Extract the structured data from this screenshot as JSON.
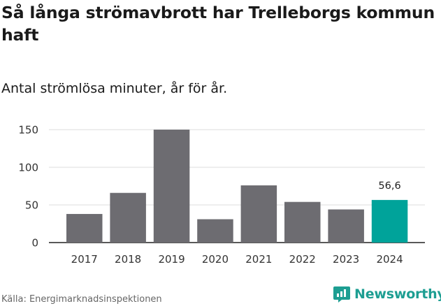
{
  "title": "Så långa strömavbrott har Trelleborgs kommun haft",
  "subtitle": "Antal strömlösa minuter, år för år.",
  "source": "Källa: Energimarknadsinspektionen",
  "brand": "Newsworthy",
  "colors": {
    "bar": "#6d6c71",
    "highlight": "#00a39a",
    "grid": "#dcdcdc",
    "axis": "#222222",
    "brand": "#1d9e92"
  },
  "chart_data": {
    "type": "bar",
    "title": "Så långa strömavbrott har Trelleborgs kommun haft",
    "subtitle": "Antal strömlösa minuter, år för år.",
    "xlabel": "",
    "ylabel": "",
    "categories": [
      "2017",
      "2018",
      "2019",
      "2020",
      "2021",
      "2022",
      "2023",
      "2024"
    ],
    "values": [
      38,
      66,
      150,
      31,
      76,
      54,
      44,
      56.6
    ],
    "highlight_index": 7,
    "data_labels": [
      {
        "index": 7,
        "text": "56,6"
      }
    ],
    "yticks": [
      0,
      50,
      100,
      150
    ],
    "ylim": [
      0,
      150
    ],
    "grid": true,
    "legend": "none"
  }
}
